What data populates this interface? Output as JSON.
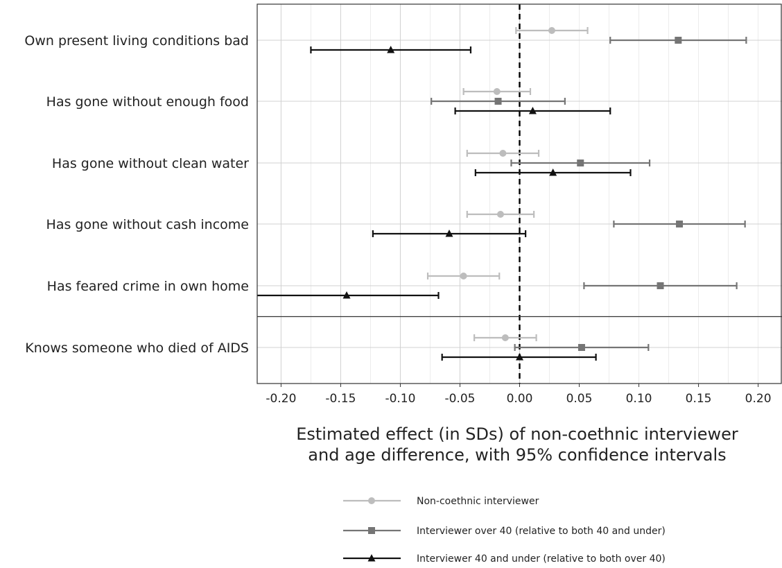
{
  "chart_data": {
    "type": "scatter",
    "subtype": "forest-plot-with-error-bars",
    "categories": [
      "Own present living conditions bad",
      "Has gone without enough food",
      "Has gone without clean water",
      "Has gone without cash income",
      "Has feared crime in own home",
      "Knows someone who died of AIDS"
    ],
    "xlabel_lines": [
      "Estimated effect (in SDs) of non-coethnic interviewer",
      "and age difference, with 95% confidence intervals"
    ],
    "xlim": [
      -0.22,
      0.22
    ],
    "xticks": [
      -0.2,
      -0.15,
      -0.1,
      -0.05,
      0.0,
      0.05,
      0.1,
      0.15,
      0.2
    ],
    "xtick_labels": [
      "-0.20",
      "-0.15",
      "-0.10",
      "-0.05",
      "0.00",
      "0.05",
      "0.10",
      "0.15",
      "0.20"
    ],
    "reference_line_x": 0,
    "grid": true,
    "separator_after_category_index": 4,
    "legend_position": "bottom",
    "series": [
      {
        "name": "Non-coethnic interviewer",
        "marker": "circle",
        "color": "#bdbdbd",
        "estimates": [
          0.027,
          -0.019,
          -0.014,
          -0.016,
          -0.047,
          -0.012
        ],
        "ci_low": [
          -0.003,
          -0.047,
          -0.044,
          -0.044,
          -0.077,
          -0.038
        ],
        "ci_high": [
          0.057,
          0.009,
          0.016,
          0.012,
          -0.017,
          0.014
        ]
      },
      {
        "name": "Interviewer over 40 (relative to both 40 and under)",
        "marker": "square",
        "color": "#757575",
        "estimates": [
          0.133,
          -0.018,
          0.051,
          0.134,
          0.118,
          0.052
        ],
        "ci_low": [
          0.076,
          -0.074,
          -0.007,
          0.079,
          0.054,
          -0.004
        ],
        "ci_high": [
          0.19,
          0.038,
          0.109,
          0.189,
          0.182,
          0.108
        ]
      },
      {
        "name": "Interviewer 40 and under (relative to both over 40)",
        "marker": "triangle",
        "color": "#111111",
        "estimates": [
          -0.108,
          0.011,
          0.028,
          -0.059,
          -0.145,
          0.0
        ],
        "ci_low": [
          -0.175,
          -0.054,
          -0.037,
          -0.123,
          -0.222,
          -0.065
        ],
        "ci_high": [
          -0.041,
          0.076,
          0.093,
          0.005,
          -0.068,
          0.064
        ]
      }
    ]
  }
}
